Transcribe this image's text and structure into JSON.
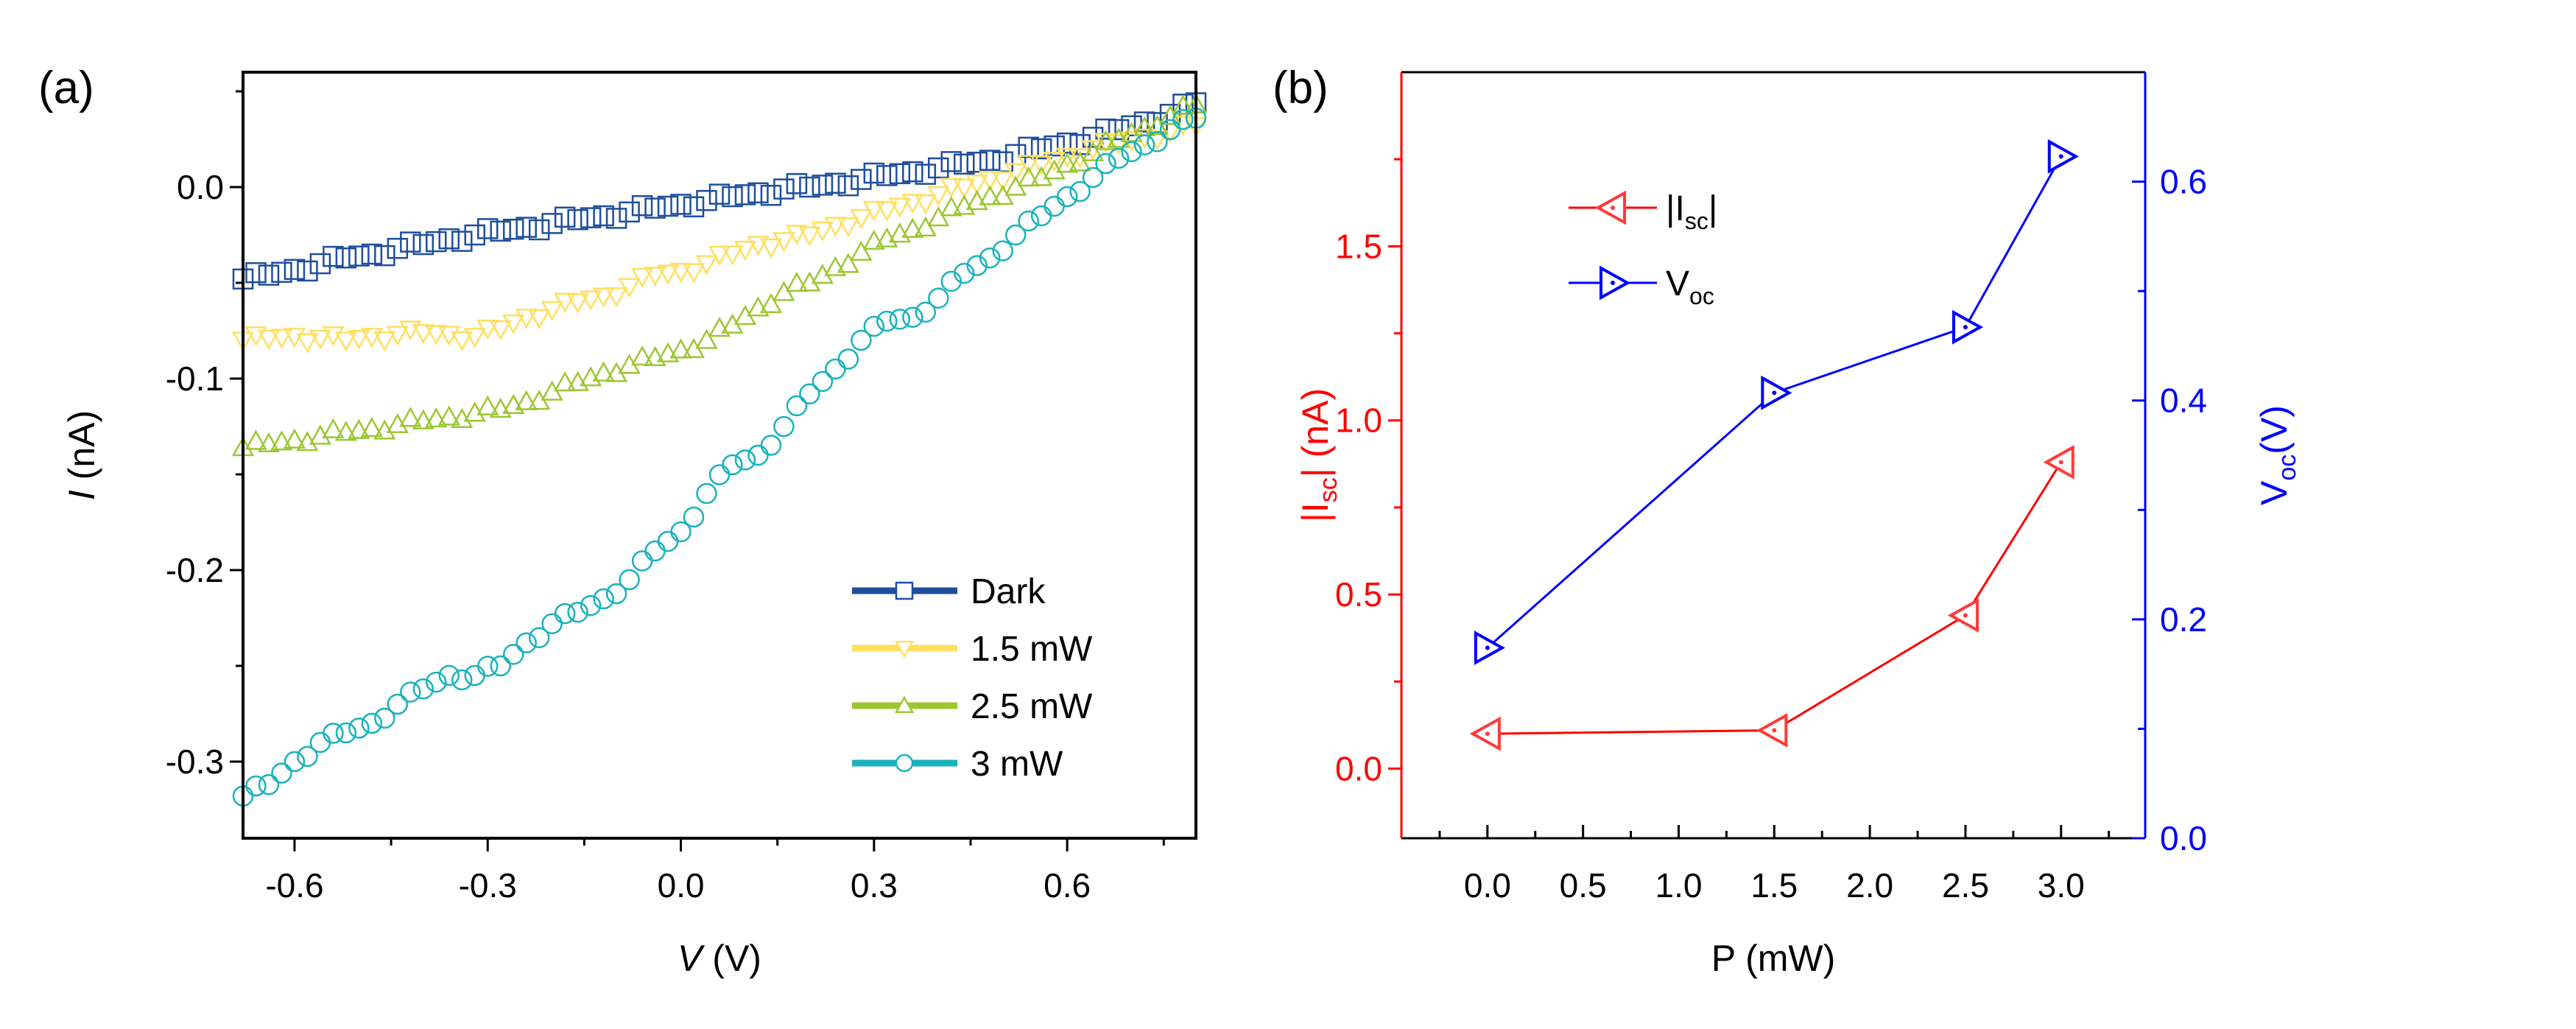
{
  "chart_data": [
    {
      "panel_label": "(a)",
      "type": "scatter",
      "xlabel_italic": "V",
      "xlabel_unit": " (V)",
      "ylabel_italic": "I",
      "ylabel_unit": " (nA)",
      "xlim": [
        -0.68,
        0.8
      ],
      "ylim": [
        -0.34,
        0.06
      ],
      "xticks": [
        -0.6,
        -0.3,
        0.0,
        0.3,
        0.6
      ],
      "xtick_labels": [
        "-0.6",
        "-0.3",
        "0.0",
        "0.3",
        "0.6"
      ],
      "yticks": [
        0.0,
        -0.1,
        -0.2,
        -0.3
      ],
      "ytick_labels": [
        "0.0",
        "-0.1",
        "-0.2",
        "-0.3"
      ],
      "legend_position": "bottom-right",
      "x": [
        -0.68,
        -0.64,
        -0.6,
        -0.56,
        -0.52,
        -0.48,
        -0.44,
        -0.4,
        -0.36,
        -0.32,
        -0.28,
        -0.24,
        -0.2,
        -0.16,
        -0.12,
        -0.08,
        -0.04,
        0.0,
        0.04,
        0.08,
        0.12,
        0.16,
        0.2,
        0.24,
        0.28,
        0.32,
        0.36,
        0.4,
        0.44,
        0.48,
        0.52,
        0.56,
        0.6,
        0.64,
        0.68,
        0.72,
        0.76,
        0.8
      ],
      "series": [
        {
          "name": "Dark",
          "color": "#1f4e9c",
          "marker": "square",
          "values": [
            -0.048,
            -0.046,
            -0.043,
            -0.04,
            -0.037,
            -0.035,
            -0.032,
            -0.03,
            -0.027,
            -0.025,
            -0.023,
            -0.021,
            -0.019,
            -0.017,
            -0.015,
            -0.013,
            -0.011,
            -0.009,
            -0.007,
            -0.005,
            -0.003,
            -0.001,
            0.0,
            0.002,
            0.004,
            0.006,
            0.008,
            0.01,
            0.012,
            0.014,
            0.017,
            0.02,
            0.023,
            0.026,
            0.03,
            0.034,
            0.038,
            0.044
          ]
        },
        {
          "name": "1.5 mW",
          "color": "#ffdf5e",
          "marker": "triangle-down",
          "values": [
            -0.08,
            -0.079,
            -0.078,
            -0.079,
            -0.08,
            -0.078,
            -0.077,
            -0.076,
            -0.077,
            -0.078,
            -0.074,
            -0.068,
            -0.064,
            -0.06,
            -0.057,
            -0.052,
            -0.046,
            -0.044,
            -0.04,
            -0.035,
            -0.03,
            -0.028,
            -0.025,
            -0.02,
            -0.016,
            -0.012,
            -0.008,
            -0.004,
            0.0,
            0.004,
            0.008,
            0.012,
            0.016,
            0.02,
            0.023,
            0.026,
            0.029,
            0.032
          ]
        },
        {
          "name": "2.5 mW",
          "color": "#9cc733",
          "marker": "triangle-up",
          "values": [
            -0.136,
            -0.134,
            -0.132,
            -0.13,
            -0.128,
            -0.126,
            -0.124,
            -0.122,
            -0.12,
            -0.118,
            -0.116,
            -0.112,
            -0.107,
            -0.102,
            -0.097,
            -0.093,
            -0.089,
            -0.085,
            -0.08,
            -0.072,
            -0.063,
            -0.055,
            -0.05,
            -0.042,
            -0.034,
            -0.027,
            -0.022,
            -0.016,
            -0.01,
            -0.005,
            0.0,
            0.005,
            0.012,
            0.018,
            0.025,
            0.031,
            0.037,
            0.043
          ]
        },
        {
          "name": "3 mW",
          "color": "#1ab2bd",
          "marker": "circle",
          "values": [
            -0.318,
            -0.312,
            -0.3,
            -0.29,
            -0.285,
            -0.28,
            -0.27,
            -0.262,
            -0.255,
            -0.255,
            -0.25,
            -0.238,
            -0.228,
            -0.222,
            -0.215,
            -0.205,
            -0.19,
            -0.18,
            -0.16,
            -0.145,
            -0.14,
            -0.125,
            -0.108,
            -0.095,
            -0.08,
            -0.07,
            -0.068,
            -0.058,
            -0.045,
            -0.037,
            -0.025,
            -0.015,
            -0.005,
            0.005,
            0.015,
            0.022,
            0.03,
            0.036
          ]
        }
      ]
    },
    {
      "panel_label": "(b)",
      "type": "line",
      "xlabel": "P (mW)",
      "ylabel_left": "|I",
      "ylabel_left_sub": "sc",
      "ylabel_left_unit": "| (nA)",
      "ylabel_right": "V",
      "ylabel_right_sub": "oc",
      "ylabel_right_unit": "(V)",
      "xlim": [
        -0.45,
        3.44
      ],
      "ylim_left": [
        -0.2,
        2.0
      ],
      "ylim_right": [
        0.0,
        0.7
      ],
      "xticks": [
        0.0,
        0.5,
        1.0,
        1.5,
        2.0,
        2.5,
        3.0
      ],
      "xtick_labels": [
        "0.0",
        "0.5",
        "1.0",
        "1.5",
        "2.0",
        "2.5",
        "3.0"
      ],
      "yticks_left": [
        0.0,
        0.5,
        1.0,
        1.5
      ],
      "ytick_labels_left": [
        "0.0",
        "0.5",
        "1.0",
        "1.5"
      ],
      "yticks_right": [
        0.0,
        0.2,
        0.4,
        0.6
      ],
      "ytick_labels_right": [
        "0.0",
        "0.2",
        "0.4",
        "0.6"
      ],
      "legend_position": "top-left",
      "left_color": "#ff0000",
      "right_color": "#0000ff",
      "x": [
        0.0,
        1.5,
        2.5,
        3.0
      ],
      "series": [
        {
          "name": "|I",
          "name_sub": "sc",
          "name_suffix": "|",
          "axis": "left",
          "color": "#ff3b3b",
          "marker": "triangle-left",
          "values": [
            0.1,
            0.11,
            0.44,
            0.88
          ]
        },
        {
          "name": "V",
          "name_sub": "oc",
          "name_suffix": "",
          "axis": "right",
          "color": "#0000ff",
          "marker": "triangle-right",
          "values": [
            0.174,
            0.407,
            0.467,
            0.623
          ]
        }
      ]
    }
  ]
}
